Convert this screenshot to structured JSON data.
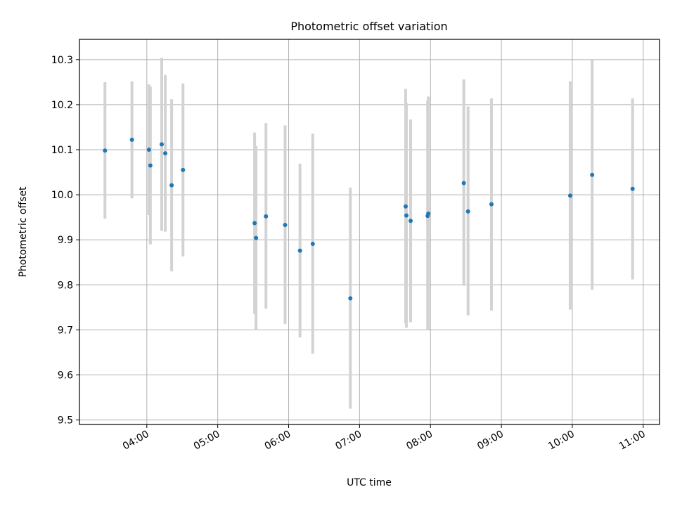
{
  "chart_data": {
    "type": "scatter",
    "title": "Photometric offset variation",
    "xlabel": "UTC time",
    "ylabel": "Photometric offset",
    "x_unit": "hours UTC",
    "xlim": [
      3.05,
      11.23
    ],
    "ylim": [
      9.49,
      10.345
    ],
    "x_ticks": [
      {
        "value": 4,
        "label": "04:00"
      },
      {
        "value": 5,
        "label": "05:00"
      },
      {
        "value": 6,
        "label": "06:00"
      },
      {
        "value": 7,
        "label": "07:00"
      },
      {
        "value": 8,
        "label": "08:00"
      },
      {
        "value": 9,
        "label": "09:00"
      },
      {
        "value": 10,
        "label": "10:00"
      },
      {
        "value": 11,
        "label": "11:00"
      }
    ],
    "y_ticks": [
      {
        "value": 9.5,
        "label": "9.5"
      },
      {
        "value": 9.6,
        "label": "9.6"
      },
      {
        "value": 9.7,
        "label": "9.7"
      },
      {
        "value": 9.8,
        "label": "9.8"
      },
      {
        "value": 9.9,
        "label": "9.9"
      },
      {
        "value": 10.0,
        "label": "10.0"
      },
      {
        "value": 10.1,
        "label": "10.1"
      },
      {
        "value": 10.2,
        "label": "10.2"
      },
      {
        "value": 10.3,
        "label": "10.3"
      }
    ],
    "grid": true,
    "colors": {
      "point": "#1f77b4",
      "errorbar": "#d3d3d3",
      "grid": "#b0b0b0"
    },
    "points": [
      {
        "x": 3.41,
        "y": 10.098,
        "low": 9.947,
        "high": 10.25
      },
      {
        "x": 3.79,
        "y": 10.122,
        "low": 9.992,
        "high": 10.252
      },
      {
        "x": 4.03,
        "y": 10.1,
        "low": 9.955,
        "high": 10.245
      },
      {
        "x": 4.05,
        "y": 10.065,
        "low": 9.89,
        "high": 10.24
      },
      {
        "x": 4.21,
        "y": 10.112,
        "low": 9.92,
        "high": 10.304
      },
      {
        "x": 4.26,
        "y": 10.092,
        "low": 9.918,
        "high": 10.266
      },
      {
        "x": 4.35,
        "y": 10.021,
        "low": 9.83,
        "high": 10.212
      },
      {
        "x": 4.51,
        "y": 10.055,
        "low": 9.863,
        "high": 10.247
      },
      {
        "x": 5.52,
        "y": 9.937,
        "low": 9.735,
        "high": 10.138
      },
      {
        "x": 5.54,
        "y": 9.904,
        "low": 9.7,
        "high": 10.108
      },
      {
        "x": 5.68,
        "y": 9.952,
        "low": 9.747,
        "high": 10.159
      },
      {
        "x": 5.95,
        "y": 9.933,
        "low": 9.713,
        "high": 10.154
      },
      {
        "x": 6.16,
        "y": 9.876,
        "low": 9.683,
        "high": 10.069
      },
      {
        "x": 6.34,
        "y": 9.891,
        "low": 9.647,
        "high": 10.136
      },
      {
        "x": 6.87,
        "y": 9.77,
        "low": 9.525,
        "high": 10.016
      },
      {
        "x": 7.65,
        "y": 9.974,
        "low": 9.715,
        "high": 10.235
      },
      {
        "x": 7.66,
        "y": 9.954,
        "low": 9.705,
        "high": 10.203
      },
      {
        "x": 7.72,
        "y": 9.942,
        "low": 9.717,
        "high": 10.167
      },
      {
        "x": 7.96,
        "y": 9.953,
        "low": 9.7,
        "high": 10.21
      },
      {
        "x": 7.97,
        "y": 9.958,
        "low": 9.7,
        "high": 10.218
      },
      {
        "x": 8.47,
        "y": 10.026,
        "low": 9.798,
        "high": 10.256
      },
      {
        "x": 8.53,
        "y": 9.963,
        "low": 9.732,
        "high": 10.196
      },
      {
        "x": 8.86,
        "y": 9.979,
        "low": 9.743,
        "high": 10.214
      },
      {
        "x": 9.97,
        "y": 9.998,
        "low": 9.745,
        "high": 10.252
      },
      {
        "x": 10.28,
        "y": 10.044,
        "low": 9.789,
        "high": 10.299
      },
      {
        "x": 10.85,
        "y": 10.013,
        "low": 9.812,
        "high": 10.214
      }
    ]
  }
}
